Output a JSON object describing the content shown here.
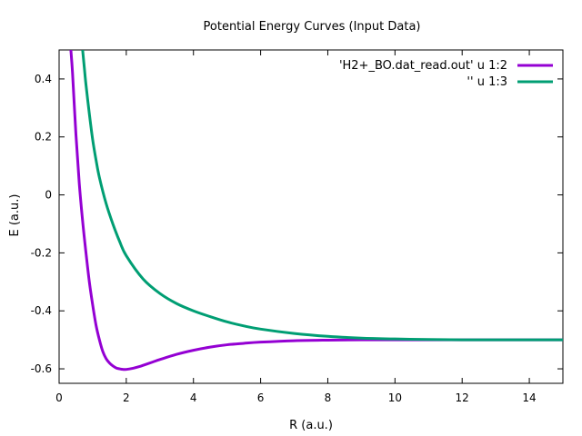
{
  "chart_data": {
    "type": "line",
    "title": "Potential Energy Curves (Input Data)",
    "xlabel": "R (a.u.)",
    "ylabel": "E (a.u.)",
    "xlim": [
      0,
      15
    ],
    "ylim": [
      -0.65,
      0.5
    ],
    "x_ticks": [
      0,
      2,
      4,
      6,
      8,
      10,
      12,
      14
    ],
    "y_ticks": [
      0.4,
      0.2,
      0,
      -0.2,
      -0.4,
      -0.6
    ],
    "x_tick_labels": [
      "0",
      "2",
      "4",
      "6",
      "8",
      "10",
      "12",
      "14"
    ],
    "y_tick_labels": [
      "0.4",
      "0.2",
      "0",
      "-0.2",
      "-0.4",
      "-0.6"
    ],
    "legend_position": "top-right",
    "grid": false,
    "series": [
      {
        "name": "'H2+_BO.dat_read.out' u 1:2",
        "color": "#9400d3",
        "x": [
          0.35,
          0.4,
          0.5,
          0.6,
          0.7,
          0.8,
          0.9,
          1.0,
          1.1,
          1.2,
          1.3,
          1.4,
          1.5,
          1.6,
          1.7,
          1.8,
          1.9,
          2.0,
          2.2,
          2.4,
          2.6,
          2.8,
          3.0,
          3.5,
          4.0,
          4.5,
          5.0,
          5.5,
          6.0,
          7.0,
          8.0,
          9.0,
          10.0,
          11.0,
          12.0,
          13.0,
          14.0,
          15.0
        ],
        "y": [
          0.5,
          0.42,
          0.21,
          0.04,
          -0.09,
          -0.2,
          -0.3,
          -0.38,
          -0.45,
          -0.5,
          -0.54,
          -0.565,
          -0.58,
          -0.59,
          -0.597,
          -0.6,
          -0.602,
          -0.602,
          -0.598,
          -0.592,
          -0.584,
          -0.576,
          -0.568,
          -0.55,
          -0.536,
          -0.525,
          -0.517,
          -0.512,
          -0.508,
          -0.503,
          -0.501,
          -0.5,
          -0.5,
          -0.5,
          -0.5,
          -0.5,
          -0.5,
          -0.5
        ]
      },
      {
        "name": "'' u 1:3",
        "color": "#009e73",
        "x": [
          0.7,
          0.75,
          0.8,
          0.9,
          1.0,
          1.1,
          1.2,
          1.4,
          1.6,
          1.8,
          2.0,
          2.5,
          3.0,
          3.5,
          4.0,
          4.5,
          5.0,
          5.5,
          6.0,
          7.0,
          8.0,
          9.0,
          10.0,
          11.0,
          12.0,
          13.0,
          14.0,
          15.0
        ],
        "y": [
          0.5,
          0.44,
          0.38,
          0.28,
          0.19,
          0.12,
          0.06,
          -0.03,
          -0.1,
          -0.16,
          -0.21,
          -0.29,
          -0.34,
          -0.375,
          -0.4,
          -0.42,
          -0.438,
          -0.452,
          -0.463,
          -0.478,
          -0.488,
          -0.494,
          -0.497,
          -0.499,
          -0.5,
          -0.5,
          -0.5,
          -0.5
        ]
      }
    ]
  }
}
